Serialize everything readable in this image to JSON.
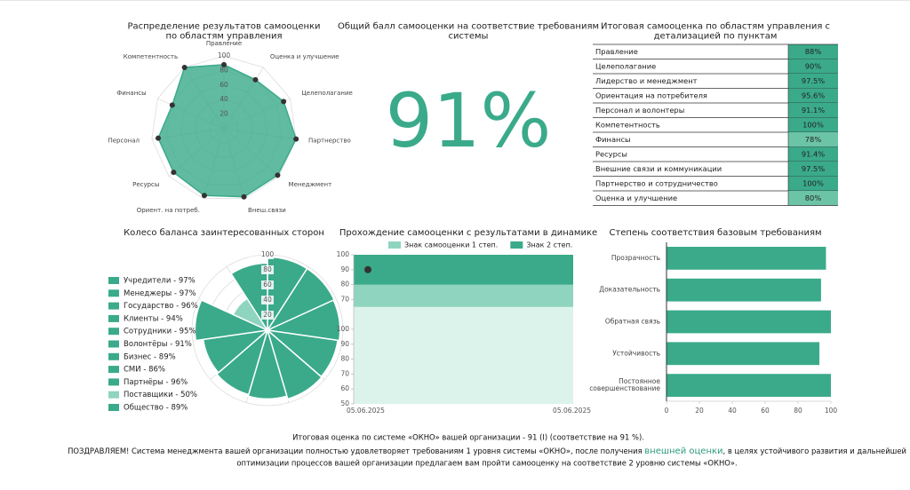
{
  "chart_data": [
    {
      "type": "radar",
      "title": "Распределение результатов самооценки по областям управления",
      "categories": [
        "Правление",
        "Оценка и улучшение",
        "Целеполагание",
        "Партнерство",
        "Менеджмент",
        "Внеш.связи",
        "Ориент. на потреб.",
        "Ресурсы",
        "Персонал",
        "Финансы",
        "Компетентность"
      ],
      "values": [
        88,
        80,
        90,
        100,
        97.5,
        97.5,
        95.6,
        91.4,
        91.1,
        78,
        100
      ],
      "rlim": [
        0,
        100
      ],
      "rticks": [
        20,
        40,
        60,
        80,
        100
      ],
      "color": "#3aaa8a"
    },
    {
      "type": "polar",
      "title": "Колесо баланса заинтересованных сторон",
      "categories": [
        "Учредители - 97%",
        "Менеджеры - 97%",
        "Государство - 96%",
        "Клиенты - 94%",
        "Сотрудники - 95%",
        "Волонтёры - 91%",
        "Бизнес - 89%",
        "СМИ - 86%",
        "Партнёры - 96%",
        "Поставщики - 50%",
        "Общество - 89%"
      ],
      "values": [
        97,
        97,
        96,
        94,
        95,
        91,
        89,
        86,
        96,
        50,
        89
      ],
      "colors": [
        "#3aaa8a",
        "#3aaa8a",
        "#3aaa8a",
        "#3aaa8a",
        "#3aaa8a",
        "#3aaa8a",
        "#3aaa8a",
        "#3aaa8a",
        "#3aaa8a",
        "#8fd4bf",
        "#3aaa8a"
      ],
      "rlim": [
        0,
        100
      ],
      "rticks": [
        20,
        40,
        60,
        80,
        100
      ]
    },
    {
      "type": "area",
      "title": "Прохождение самооценки с результатами в динамике",
      "categories": [
        "05.06.2025",
        "05.06.2025"
      ],
      "series": [
        {
          "name": "Знак самооценки 1 степ.",
          "color": "#8fd4bf",
          "values": [
            80,
            80
          ]
        },
        {
          "name": "Знак 2 степ.",
          "color": "#3aaa8a",
          "values": [
            100,
            100
          ]
        },
        {
          "color": "#dcf3eb",
          "values": [
            65,
            65
          ]
        }
      ],
      "points": {
        "color": "#333333",
        "values": [
          90,
          null
        ]
      },
      "ylim": [
        0,
        100
      ],
      "yticks": [
        100,
        90,
        80,
        70,
        {
          "value": 50,
          "label": "100"
        },
        {
          "value": 40,
          "label": "90"
        },
        {
          "value": 30,
          "label": "80"
        },
        {
          "value": 20,
          "label": "70"
        },
        {
          "value": 10,
          "label": "60"
        },
        {
          "value": 0,
          "label": "50"
        }
      ]
    },
    {
      "type": "hbar",
      "title": "Степень соответствия базовым требованиям",
      "categories": [
        "Прозрачность",
        "Доказательность",
        "Обратная связь",
        "Устойчивость",
        "Постоянное совершенствование"
      ],
      "values": [
        97,
        94,
        100,
        93,
        100
      ],
      "color": "#3aaa8a",
      "xlim": [
        0,
        100
      ],
      "xticks": [
        0,
        20,
        40,
        60,
        80,
        100
      ]
    }
  ],
  "score": {
    "title": "Общий балл самооценки на соответствие требованиям системы",
    "text": "91%"
  },
  "table": {
    "title": "Итоговая самооценка по областям управления с детализацией по пунктам",
    "rows": [
      {
        "name": "Правление",
        "value": "88%",
        "color": "#3aaa8a"
      },
      {
        "name": "Целеполагание",
        "value": "90%",
        "color": "#3aaa8a"
      },
      {
        "name": "Лидерство и менеджмент",
        "value": "97.5%",
        "color": "#3aaa8a"
      },
      {
        "name": "Ориентация на потребителя",
        "value": "95.6%",
        "color": "#3aaa8a"
      },
      {
        "name": "Персонал и волонтеры",
        "value": "91.1%",
        "color": "#3aaa8a"
      },
      {
        "name": "Компетентность",
        "value": "100%",
        "color": "#3aaa8a"
      },
      {
        "name": "Финансы",
        "value": "78%",
        "color": "#6cc4a6"
      },
      {
        "name": "Ресурсы",
        "value": "91.4%",
        "color": "#3aaa8a"
      },
      {
        "name": "Внешние связи и коммуникации",
        "value": "97.5%",
        "color": "#3aaa8a"
      },
      {
        "name": "Партнерство и сотрудничество",
        "value": "100%",
        "color": "#3aaa8a"
      },
      {
        "name": "Оценка и улучшение",
        "value": "80%",
        "color": "#6cc4a6"
      }
    ]
  },
  "footer": {
    "line1": "Итоговая оценка по системе «ОКНО» вашей организации - 91 (I) (соответствие на 91 %).",
    "line2_start": "ПОЗДРАВЛЯЕМ! Система менеджмента вашей организации полностью удовлетворяет требованиям 1 уровня системы «ОКНО», после получения ",
    "line2_link": "внешней оценки",
    "line2_end": ", в целях устойчивого развития и дальнейшей",
    "line3": "оптимизации процессов вашей организации предлагаем вам пройти самооценку на соответствие 2 уровню системы «ОКНО»."
  }
}
